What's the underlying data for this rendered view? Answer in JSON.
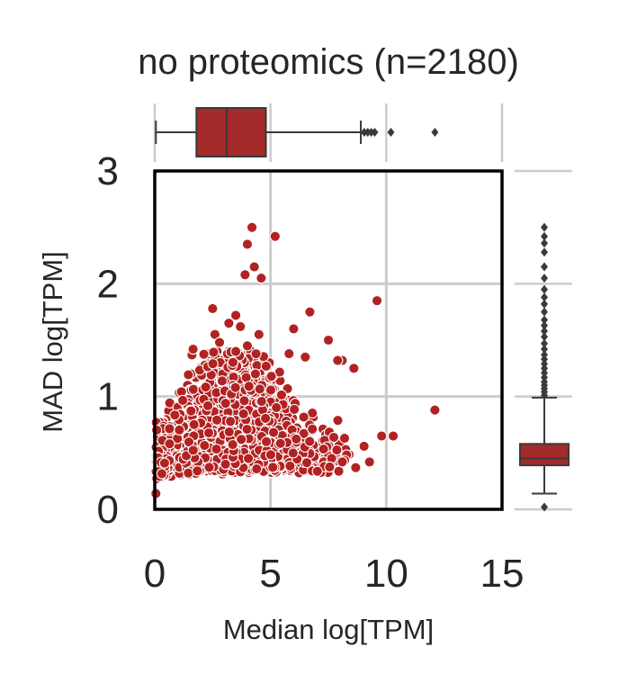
{
  "chart_data": {
    "type": "scatter",
    "title": "no proteomics (n=2180)",
    "xlabel": "Median log[TPM]",
    "ylabel": "MAD log[TPM]",
    "xlim": [
      0,
      15
    ],
    "ylim": [
      0,
      3
    ],
    "xticks": [
      "0",
      "5",
      "10",
      "15"
    ],
    "yticks": [
      "0",
      "1",
      "2",
      "3"
    ],
    "grid": true,
    "color": "#b22222",
    "box_color": "#a52a2a",
    "marginal_x_box": {
      "min": 0.05,
      "q1": 1.8,
      "median": 3.1,
      "q3": 4.8,
      "max": 8.9,
      "outliers": [
        9.05,
        9.2,
        9.35,
        9.5,
        10.2,
        12.1
      ]
    },
    "marginal_y_box": {
      "min": 0.14,
      "q1": 0.39,
      "median": 0.45,
      "q3": 0.58,
      "max": 0.99,
      "outliers": [
        1.01,
        1.04,
        1.07,
        1.1,
        1.13,
        1.17,
        1.21,
        1.25,
        1.29,
        1.33,
        1.37,
        1.42,
        1.47,
        1.53,
        1.58,
        1.63,
        1.68,
        1.75,
        1.82,
        1.88,
        1.95,
        2.05,
        2.15,
        2.28,
        2.36,
        2.42,
        2.5,
        0.02
      ]
    },
    "points": [
      [
        4.2,
        2.5
      ],
      [
        4.0,
        2.35
      ],
      [
        5.2,
        2.42
      ],
      [
        4.3,
        2.15
      ],
      [
        4.6,
        2.05
      ],
      [
        3.9,
        2.08
      ],
      [
        9.6,
        1.85
      ],
      [
        2.5,
        1.78
      ],
      [
        3.5,
        1.72
      ],
      [
        6.7,
        1.75
      ],
      [
        3.2,
        1.65
      ],
      [
        3.7,
        1.62
      ],
      [
        6.0,
        1.6
      ],
      [
        4.5,
        1.55
      ],
      [
        2.6,
        1.55
      ],
      [
        7.5,
        1.5
      ],
      [
        12.1,
        0.88
      ],
      [
        10.3,
        0.65
      ],
      [
        9.8,
        0.65
      ],
      [
        0.05,
        0.14
      ],
      [
        8.1,
        1.32
      ],
      [
        8.6,
        1.25
      ],
      [
        7.9,
        1.32
      ],
      [
        2.8,
        1.48
      ],
      [
        4.0,
        1.45
      ],
      [
        3.5,
        1.4
      ],
      [
        5.8,
        1.38
      ],
      [
        6.5,
        1.35
      ]
    ],
    "n_points": 2180
  }
}
